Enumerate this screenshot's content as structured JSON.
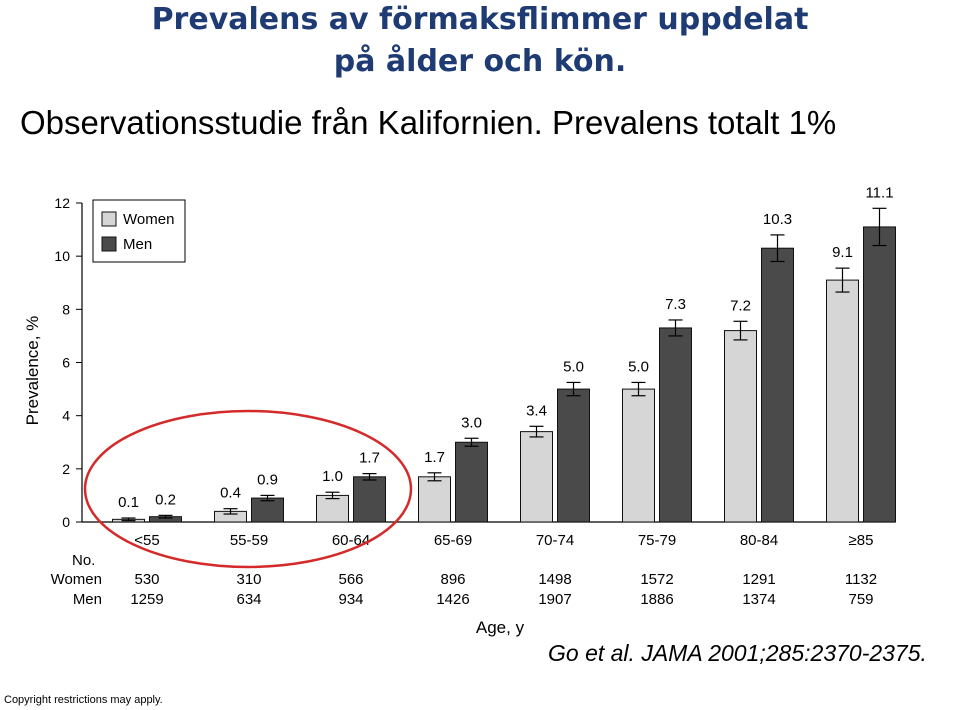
{
  "page": {
    "title_line1": "Prevalens av förmaksflimmer uppdelat",
    "title_line2": "på ålder och kön.",
    "subtitle": "Observationsstudie från Kalifornien. Prevalens totalt 1%",
    "citation": "Go et al. JAMA 2001;285:2370-2375.",
    "copyright": "Copyright restrictions may apply.",
    "title_color": "#1f3b73"
  },
  "chart_data": {
    "type": "bar",
    "ylabel": "Prevalence, %",
    "xlabel": "Age, y",
    "ylim": [
      0,
      12
    ],
    "yticks": [
      0,
      2,
      4,
      6,
      8,
      10,
      12
    ],
    "categories": [
      "<55",
      "55-59",
      "60-64",
      "65-69",
      "70-74",
      "75-79",
      "80-84",
      "≥85"
    ],
    "series": [
      {
        "name": "Women",
        "color": "#d6d6d6",
        "values": [
          0.1,
          0.4,
          1.0,
          1.7,
          3.4,
          5.0,
          7.2,
          9.1
        ],
        "labels": [
          "0.1",
          "0.4",
          "1.0",
          "1.7",
          "3.4",
          "5.0",
          "7.2",
          "9.1"
        ],
        "errors": [
          0.05,
          0.1,
          0.12,
          0.15,
          0.2,
          0.25,
          0.35,
          0.45
        ]
      },
      {
        "name": "Men",
        "color": "#4a4a4a",
        "values": [
          0.2,
          0.9,
          1.7,
          3.0,
          5.0,
          7.3,
          10.3,
          11.1
        ],
        "labels": [
          "0.2",
          "0.9",
          "1.7",
          "3.0",
          "5.0",
          "7.3",
          "10.3",
          "11.1"
        ],
        "errors": [
          0.05,
          0.1,
          0.12,
          0.15,
          0.25,
          0.3,
          0.5,
          0.7
        ]
      }
    ],
    "counts_header": "No.",
    "counts": [
      {
        "name": "Women",
        "values": [
          "530",
          "310",
          "566",
          "896",
          "1498",
          "1572",
          "1291",
          "1132"
        ]
      },
      {
        "name": "Men",
        "values": [
          "1259",
          "634",
          "934",
          "1426",
          "1907",
          "1886",
          "1374",
          "759"
        ]
      }
    ],
    "legend_position": "top-left",
    "grid": false,
    "highlight": {
      "shape": "ellipse",
      "color": "#d42a2a",
      "categories": [
        "<55",
        "55-59",
        "60-64"
      ]
    }
  }
}
